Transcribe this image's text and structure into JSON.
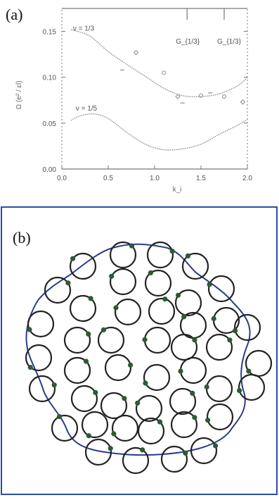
{
  "panels": {
    "a_label": "(a)",
    "b_label": "(b)"
  },
  "colors": {
    "axis": "#777777",
    "curve": "#8a8a8a",
    "boundary": "#2b3c8a",
    "ring": "#222222",
    "dot": "#2e5a34",
    "panel_border": "#2b4fa0"
  },
  "chart_data": {
    "type": "line",
    "xlabel": "k_i",
    "ylabel": "Ω (e² / εl)",
    "xlim": [
      0.0,
      2.0
    ],
    "ylim": [
      0.0,
      0.175
    ],
    "x_ticks": [
      "0.0",
      "0.5",
      "1.0",
      "1.5",
      "2.0"
    ],
    "y_ticks": [
      "0.00",
      "0.05",
      "0.10",
      "0.15"
    ],
    "top_markers": {
      "x": [
        1.35,
        1.75
      ],
      "labels": [
        "G_{1/3}",
        "G_{1/3}"
      ]
    },
    "series": [
      {
        "name": "ν = 1/3",
        "x": [
          0.1,
          0.3,
          0.5,
          0.7,
          0.9,
          1.1,
          1.3,
          1.5,
          1.7,
          1.9,
          2.0
        ],
        "y": [
          0.152,
          0.145,
          0.128,
          0.114,
          0.101,
          0.088,
          0.08,
          0.079,
          0.082,
          0.091,
          0.1
        ]
      },
      {
        "name": "ν = 1/5",
        "x": [
          0.1,
          0.2,
          0.35,
          0.5,
          0.7,
          0.9,
          1.1,
          1.3,
          1.5,
          1.7,
          1.9,
          2.0
        ],
        "y": [
          0.053,
          0.058,
          0.06,
          0.055,
          0.04,
          0.027,
          0.021,
          0.022,
          0.027,
          0.038,
          0.048,
          0.054
        ]
      },
      {
        "name": "points-circle",
        "x": [
          1.1,
          1.5,
          1.75
        ],
        "y": [
          0.105,
          0.08,
          0.079
        ]
      },
      {
        "name": "points-diamond",
        "x": [
          0.8,
          1.25,
          1.95
        ],
        "y": [
          0.127,
          0.079,
          0.073
        ]
      },
      {
        "name": "points-bar",
        "x": [
          0.65,
          1.3,
          1.6
        ],
        "y": [
          0.108,
          0.072,
          0.083
        ]
      }
    ],
    "annotations": [
      {
        "text": "ν = 1/3",
        "x": 0.12,
        "y": 0.153
      },
      {
        "text": "ν = 1/5",
        "x": 0.15,
        "y": 0.066
      }
    ],
    "grid": false
  }
}
